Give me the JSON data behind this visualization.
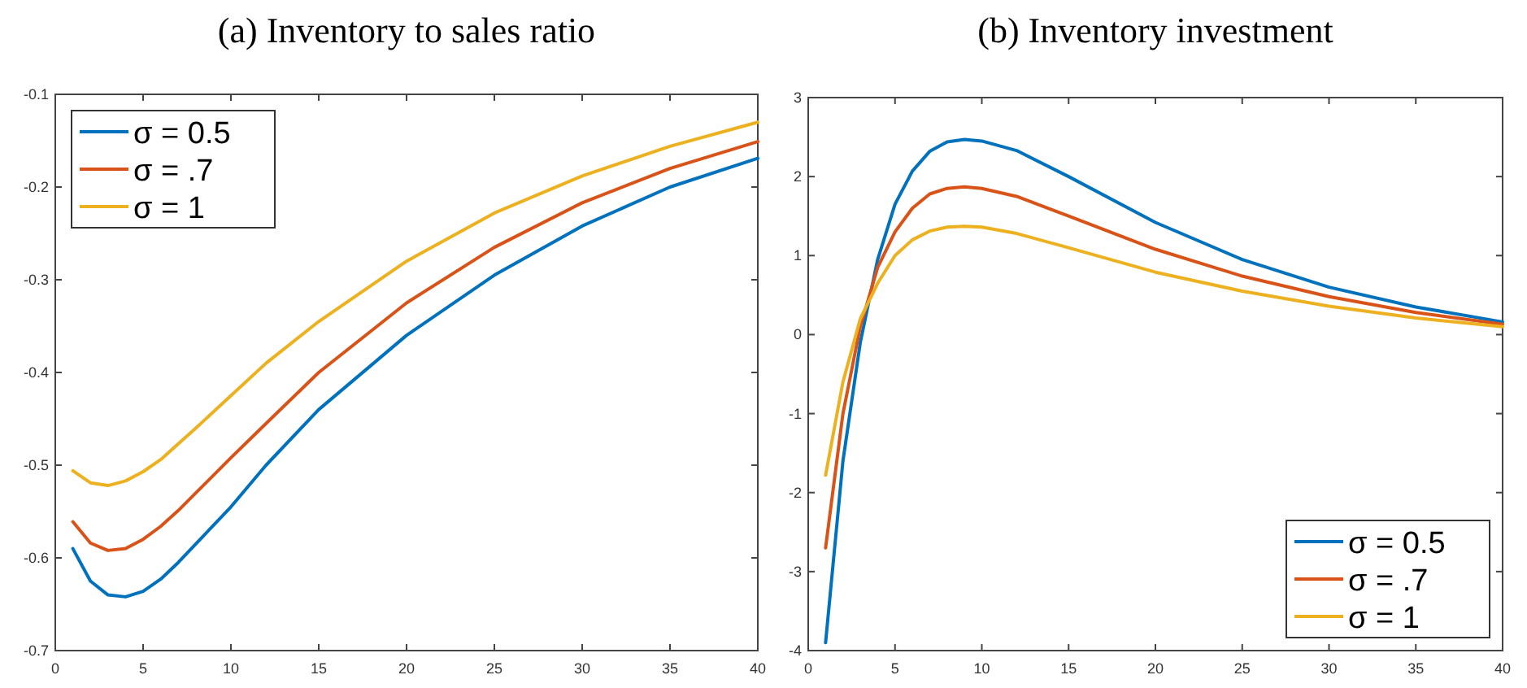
{
  "chart_data": [
    {
      "type": "line",
      "title": "(a) Inventory to sales ratio",
      "x": [
        1,
        2,
        3,
        4,
        5,
        6,
        7,
        8,
        10,
        12,
        15,
        20,
        25,
        30,
        35,
        40
      ],
      "xlim": [
        0,
        40
      ],
      "xticks": [
        0,
        5,
        10,
        15,
        20,
        25,
        30,
        35,
        40
      ],
      "ylim": [
        -0.7,
        -0.1
      ],
      "yticks": [
        -0.7,
        -0.6,
        -0.5,
        -0.4,
        -0.3,
        -0.2,
        -0.1
      ],
      "grid": false,
      "legend": "top left",
      "series": [
        {
          "name": "σ = 0.5",
          "color": "#0072bd",
          "values": [
            -0.59,
            -0.625,
            -0.64,
            -0.642,
            -0.636,
            -0.623,
            -0.605,
            -0.585,
            -0.545,
            -0.5,
            -0.44,
            -0.36,
            -0.295,
            -0.242,
            -0.2,
            -0.169
          ]
        },
        {
          "name": "σ = .7",
          "color": "#d95319",
          "values": [
            -0.561,
            -0.584,
            -0.592,
            -0.59,
            -0.58,
            -0.566,
            -0.549,
            -0.53,
            -0.492,
            -0.455,
            -0.4,
            -0.325,
            -0.265,
            -0.217,
            -0.18,
            -0.151
          ]
        },
        {
          "name": "σ = 1",
          "color": "#edb120",
          "values": [
            -0.506,
            -0.519,
            -0.522,
            -0.517,
            -0.507,
            -0.494,
            -0.477,
            -0.46,
            -0.425,
            -0.39,
            -0.345,
            -0.28,
            -0.228,
            -0.188,
            -0.156,
            -0.13
          ]
        }
      ]
    },
    {
      "type": "line",
      "title": "(b) Inventory investment",
      "x": [
        1,
        2,
        3,
        4,
        5,
        6,
        7,
        8,
        9,
        10,
        12,
        15,
        20,
        25,
        30,
        35,
        40
      ],
      "xlim": [
        0,
        40
      ],
      "xticks": [
        0,
        5,
        10,
        15,
        20,
        25,
        30,
        35,
        40
      ],
      "ylim": [
        -4,
        3
      ],
      "yticks": [
        -4,
        -3,
        -2,
        -1,
        0,
        1,
        2,
        3
      ],
      "grid": false,
      "legend": "bottom right",
      "series": [
        {
          "name": "σ = 0.5",
          "color": "#0072bd",
          "values": [
            -3.9,
            -1.6,
            -0.1,
            0.95,
            1.65,
            2.07,
            2.32,
            2.44,
            2.47,
            2.45,
            2.33,
            2.0,
            1.42,
            0.95,
            0.6,
            0.35,
            0.16
          ]
        },
        {
          "name": "σ = .7",
          "color": "#d95319",
          "values": [
            -2.7,
            -1.0,
            0.1,
            0.85,
            1.3,
            1.6,
            1.78,
            1.85,
            1.87,
            1.85,
            1.75,
            1.5,
            1.08,
            0.74,
            0.48,
            0.28,
            0.13
          ]
        },
        {
          "name": "σ = 1",
          "color": "#edb120",
          "values": [
            -1.78,
            -0.6,
            0.2,
            0.65,
            1.0,
            1.2,
            1.31,
            1.36,
            1.37,
            1.36,
            1.28,
            1.1,
            0.79,
            0.55,
            0.36,
            0.21,
            0.1
          ]
        }
      ]
    }
  ]
}
